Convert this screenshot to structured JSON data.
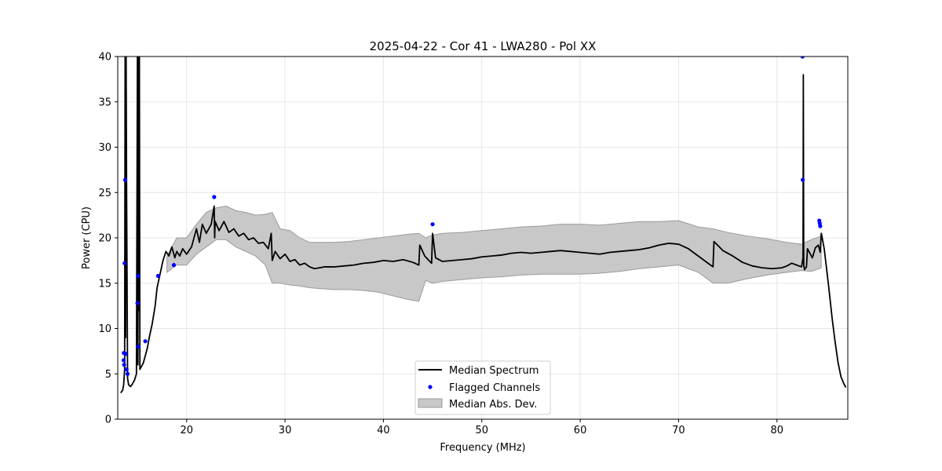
{
  "chart_data": {
    "type": "line",
    "title": "2025-04-22 - Cor 41 - LWA280 - Pol XX",
    "xlabel": "Frequency (MHz)",
    "ylabel": "Power (CPU)",
    "xlim": [
      13.0,
      87.2
    ],
    "ylim": [
      0,
      40
    ],
    "grid": true,
    "x_ticks": [
      20,
      30,
      40,
      50,
      60,
      70,
      80
    ],
    "y_ticks": [
      0,
      5,
      10,
      15,
      20,
      25,
      30,
      35,
      40
    ],
    "x_tick_labels": [
      "20",
      "30",
      "40",
      "50",
      "60",
      "70",
      "80"
    ],
    "y_tick_labels": [
      "0",
      "5",
      "10",
      "15",
      "20",
      "25",
      "30",
      "35",
      "40"
    ],
    "legend": {
      "location": "bottom-center",
      "entries": [
        "Median Spectrum",
        "Flagged Channels",
        "Median Abs. Dev."
      ]
    },
    "series": [
      {
        "name": "Median Spectrum",
        "kind": "line",
        "color": "#000000",
        "x": [
          13.3,
          13.5,
          13.6,
          13.7,
          13.75,
          13.8,
          13.85,
          13.9,
          14.0,
          14.1,
          14.3,
          14.5,
          14.7,
          14.9,
          15.0,
          15.05,
          15.1,
          15.15,
          15.2,
          15.25,
          15.4,
          15.6,
          15.8,
          16.0,
          16.2,
          16.5,
          16.8,
          17.0,
          17.3,
          17.6,
          17.9,
          18.2,
          18.5,
          18.8,
          19.0,
          19.3,
          19.6,
          20.0,
          20.5,
          21.0,
          21.3,
          21.6,
          22.0,
          22.5,
          22.8,
          22.85,
          22.9,
          23.3,
          23.8,
          24.3,
          24.8,
          25.3,
          25.8,
          26.3,
          26.8,
          27.3,
          27.8,
          28.3,
          28.6,
          28.7,
          29.0,
          29.5,
          30.0,
          30.5,
          31.0,
          31.5,
          32.0,
          32.5,
          33.0,
          34.0,
          35.0,
          36.0,
          37.0,
          38.0,
          39.0,
          40.0,
          41.0,
          42.0,
          43.0,
          43.6,
          43.7,
          44.2,
          44.9,
          45.0,
          45.3,
          46.0,
          47.0,
          48.0,
          49.0,
          50.0,
          51.0,
          52.0,
          53.0,
          54.0,
          55.0,
          56.0,
          57.0,
          58.0,
          59.0,
          60.0,
          61.0,
          62.0,
          63.0,
          64.0,
          65.0,
          66.0,
          67.0,
          68.0,
          69.0,
          70.0,
          71.0,
          72.0,
          73.0,
          73.5,
          73.6,
          74.5,
          75.5,
          76.5,
          77.5,
          78.5,
          79.5,
          80.5,
          81.0,
          81.5,
          82.0,
          82.5,
          82.65,
          82.68,
          82.72,
          82.8,
          83.0,
          83.1,
          83.3,
          83.6,
          83.9,
          84.2,
          84.4,
          84.5,
          84.6,
          84.8,
          85.0,
          85.3,
          85.6,
          85.9,
          86.2,
          86.5,
          86.8,
          87.0
        ],
        "y": [
          2.9,
          3.2,
          3.8,
          5.5,
          40.0,
          9.0,
          40.0,
          25.0,
          4.5,
          3.8,
          3.6,
          3.9,
          4.3,
          5.0,
          40.0,
          6.0,
          40.0,
          12.0,
          40.0,
          5.5,
          5.8,
          6.2,
          7.0,
          7.8,
          9.0,
          10.5,
          12.5,
          14.5,
          16.0,
          17.5,
          18.5,
          18.0,
          19.0,
          17.8,
          18.5,
          18.0,
          18.8,
          18.2,
          19.0,
          21.0,
          19.5,
          21.5,
          20.5,
          21.5,
          23.5,
          20.0,
          21.8,
          20.8,
          21.8,
          20.6,
          21.0,
          20.2,
          20.5,
          19.8,
          20.0,
          19.4,
          19.5,
          18.8,
          20.5,
          17.5,
          18.5,
          17.7,
          18.2,
          17.4,
          17.6,
          17.0,
          17.2,
          16.8,
          16.6,
          16.8,
          16.8,
          16.9,
          17.0,
          17.2,
          17.3,
          17.5,
          17.4,
          17.6,
          17.3,
          17.0,
          19.2,
          18.0,
          17.2,
          20.5,
          17.8,
          17.4,
          17.5,
          17.6,
          17.7,
          17.9,
          18.0,
          18.1,
          18.3,
          18.4,
          18.3,
          18.4,
          18.5,
          18.6,
          18.5,
          18.4,
          18.3,
          18.2,
          18.4,
          18.5,
          18.6,
          18.7,
          18.9,
          19.2,
          19.4,
          19.3,
          18.8,
          18.0,
          17.2,
          16.8,
          19.6,
          18.6,
          18.0,
          17.3,
          16.9,
          16.7,
          16.6,
          16.7,
          16.9,
          17.2,
          17.0,
          16.8,
          17.8,
          38.0,
          17.0,
          16.5,
          16.8,
          18.8,
          18.4,
          17.8,
          18.9,
          19.2,
          18.4,
          20.5,
          20.0,
          18.8,
          17.0,
          14.2,
          11.2,
          8.6,
          6.3,
          4.7,
          3.9,
          3.5
        ]
      },
      {
        "name": "Median Abs. Dev.",
        "kind": "band",
        "color": "#b4b4b4",
        "x": [
          18.0,
          19.0,
          20.0,
          21.0,
          22.0,
          23.0,
          24.0,
          25.0,
          26.0,
          27.0,
          28.0,
          28.7,
          29.5,
          30.5,
          31.5,
          32.5,
          33.5,
          35.0,
          36.5,
          38.0,
          39.5,
          41.0,
          42.5,
          43.6,
          44.3,
          45.0,
          46.0,
          48.0,
          50.0,
          52.0,
          54.0,
          56.0,
          58.0,
          60.0,
          62.0,
          64.0,
          66.0,
          68.0,
          70.0,
          72.0,
          73.5,
          75.0,
          77.0,
          79.0,
          81.0,
          82.5,
          83.5,
          84.5
        ],
        "lower": [
          16.2,
          17.0,
          17.0,
          18.2,
          19.0,
          19.8,
          19.8,
          19.0,
          18.5,
          18.0,
          17.0,
          15.0,
          15.0,
          14.8,
          14.7,
          14.5,
          14.4,
          14.3,
          14.3,
          14.2,
          14.0,
          13.6,
          13.2,
          13.0,
          15.3,
          15.0,
          15.2,
          15.4,
          15.6,
          15.7,
          15.9,
          16.0,
          16.0,
          16.0,
          16.1,
          16.3,
          16.6,
          16.8,
          17.0,
          16.2,
          15.0,
          15.0,
          15.5,
          15.9,
          16.2,
          16.4,
          16.3,
          16.7
        ],
        "upper": [
          18.0,
          20.0,
          20.0,
          21.5,
          22.8,
          23.3,
          23.5,
          23.0,
          22.8,
          22.5,
          22.6,
          22.8,
          21.0,
          20.8,
          20.0,
          19.5,
          19.5,
          19.5,
          19.6,
          19.8,
          20.0,
          20.2,
          20.4,
          20.5,
          20.0,
          20.3,
          20.5,
          20.6,
          20.8,
          21.0,
          21.2,
          21.3,
          21.5,
          21.5,
          21.4,
          21.6,
          21.8,
          21.8,
          21.9,
          21.2,
          21.0,
          20.6,
          20.2,
          19.9,
          19.5,
          19.3,
          19.8,
          20.2
        ]
      },
      {
        "name": "Flagged Channels",
        "kind": "scatter",
        "color": "#0000ff",
        "x": [
          13.6,
          13.62,
          13.65,
          13.7,
          13.75,
          13.8,
          13.9,
          14.0,
          15.0,
          15.05,
          15.1,
          15.8,
          17.1,
          18.7,
          22.8,
          45.0,
          82.6,
          82.62,
          84.3,
          84.35,
          84.4
        ],
        "y": [
          6.5,
          7.3,
          6.0,
          17.2,
          26.4,
          7.2,
          5.5,
          5.0,
          12.8,
          15.8,
          8.0,
          8.6,
          15.8,
          17.0,
          24.5,
          21.5,
          40.0,
          26.4,
          21.9,
          21.6,
          21.3
        ]
      }
    ]
  }
}
